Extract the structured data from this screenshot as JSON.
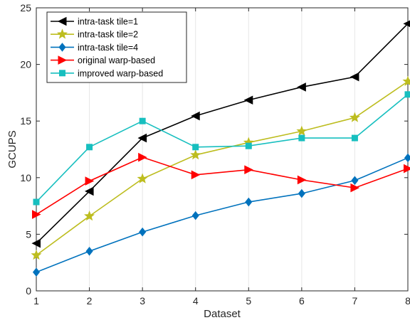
{
  "chart_data": {
    "type": "line",
    "xlabel": "Dataset",
    "ylabel": "GCUPS",
    "x": [
      1,
      2,
      3,
      4,
      5,
      6,
      7,
      8
    ],
    "xlim": [
      1,
      8
    ],
    "ylim": [
      0,
      25
    ],
    "xticks": [
      "1",
      "2",
      "3",
      "4",
      "5",
      "6",
      "7",
      "8"
    ],
    "yticks": [
      "0",
      "5",
      "10",
      "15",
      "20",
      "25"
    ],
    "grid": "vertical",
    "legend_position": "top-left",
    "series": [
      {
        "name": "intra-task tile=1",
        "color": "#000000",
        "marker": "triangle-left",
        "values": [
          4.2,
          8.8,
          13.5,
          15.45,
          16.85,
          18.0,
          18.9,
          23.6
        ]
      },
      {
        "name": "intra-task tile=2",
        "color": "#bdbd1f",
        "marker": "star",
        "values": [
          3.15,
          6.6,
          9.9,
          12.0,
          13.1,
          14.1,
          15.3,
          18.5
        ]
      },
      {
        "name": "intra-task tile=4",
        "color": "#0072bd",
        "marker": "diamond",
        "values": [
          1.65,
          3.5,
          5.2,
          6.65,
          7.85,
          8.6,
          9.75,
          11.75
        ]
      },
      {
        "name": "original warp-based",
        "color": "#ff0000",
        "marker": "triangle-right",
        "values": [
          6.75,
          9.7,
          11.8,
          10.25,
          10.7,
          9.8,
          9.1,
          10.8
        ]
      },
      {
        "name": "improved warp-based",
        "color": "#17bfbf",
        "marker": "square",
        "values": [
          7.85,
          12.7,
          15.0,
          12.7,
          12.8,
          13.5,
          13.5,
          17.35
        ]
      }
    ]
  }
}
